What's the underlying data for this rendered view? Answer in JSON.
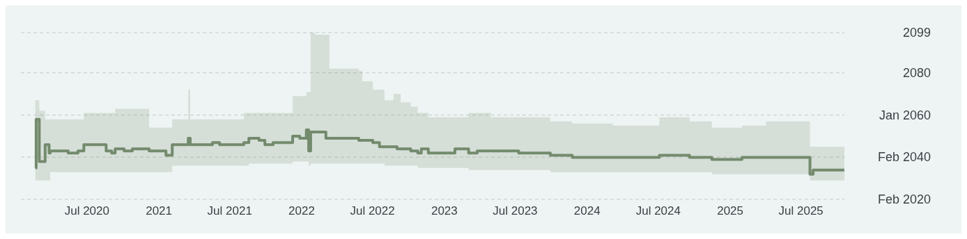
{
  "chart_data": {
    "type": "step",
    "x": [
      "2020-02-20",
      "2020-02-22",
      "2020-03-01",
      "2020-03-16",
      "2020-03-26",
      "2020-03-29",
      "2020-05-14",
      "2020-06-08",
      "2020-06-23",
      "2020-08-19",
      "2020-09-02",
      "2020-09-11",
      "2020-10-04",
      "2020-10-25",
      "2020-12-07",
      "2021-01-19",
      "2021-02-04",
      "2021-03-17",
      "2021-03-22",
      "2021-05-18",
      "2021-06-05",
      "2021-08-06",
      "2021-08-19",
      "2021-09-14",
      "2021-09-29",
      "2021-10-20",
      "2021-12-09",
      "2021-12-27",
      "2022-01-13",
      "2022-01-19",
      "2022-01-24",
      "2022-02-04",
      "2022-03-04",
      "2022-03-13",
      "2022-05-27",
      "2022-06-05",
      "2022-07-02",
      "2022-07-19",
      "2022-08-01",
      "2022-08-24",
      "2022-09-02",
      "2022-09-11",
      "2022-10-07",
      "2022-10-25",
      "2022-11-03",
      "2022-11-21",
      "2023-01-28",
      "2023-03-04",
      "2023-03-26",
      "2023-04-30",
      "2023-07-10",
      "2023-09-29",
      "2023-11-24",
      "2024-03-07",
      "2024-07-04",
      "2024-09-19",
      "2024-11-15",
      "2025-01-31",
      "2025-04-03",
      "2025-07-24",
      "2025-08-01",
      "2025-10-20"
    ],
    "series": [
      {
        "color": "#748a6d",
        "values": [
          2035,
          2058,
          2038,
          2046,
          2042,
          2043,
          2042,
          2043,
          2046,
          2043,
          2042,
          2044,
          2043,
          2044,
          2043,
          2041,
          2046,
          2049,
          2046,
          2047,
          2046,
          2047,
          2049,
          2048,
          2046,
          2047,
          2050,
          2049,
          2053,
          2043,
          2052,
          2052,
          2049,
          2049,
          2048,
          2048,
          2047,
          2045,
          2045,
          2045,
          2044,
          2044,
          2043,
          2042,
          2044,
          2042,
          2044,
          2042,
          2043,
          2043,
          2042,
          2041,
          2040,
          2040,
          2041,
          2040,
          2039,
          2040,
          2040,
          2032,
          2034,
          2034
        ],
        "lower": [
          2029,
          2029,
          2029,
          2029,
          2029,
          2033,
          2033,
          2033,
          2033,
          2033,
          2033,
          2033,
          2033,
          2033,
          2033,
          2033,
          2036,
          2036,
          2036,
          2036,
          2036,
          2036,
          2037,
          2037,
          2037,
          2037,
          2038,
          2038,
          2038,
          2036,
          2037,
          2037,
          2037,
          2037,
          2037,
          2037,
          2037,
          2037,
          2036,
          2036,
          2036,
          2036,
          2036,
          2035,
          2035,
          2035,
          2035,
          2034,
          2034,
          2034,
          2034,
          2033,
          2033,
          2033,
          2033,
          2033,
          2032,
          2032,
          2032,
          2029,
          2029,
          2029
        ],
        "upper": [
          2067,
          2067,
          2062,
          2058,
          2058,
          2058,
          2058,
          2058,
          2061,
          2061,
          2061,
          2063,
          2063,
          2063,
          2054,
          2054,
          2058,
          2072,
          2058,
          2058,
          2058,
          2061,
          2061,
          2061,
          2061,
          2061,
          2069,
          2069,
          2071,
          2071,
          2099,
          2098,
          2098,
          2082,
          2081,
          2076,
          2072,
          2072,
          2067,
          2070,
          2070,
          2066,
          2064,
          2061,
          2061,
          2059,
          2059,
          2061,
          2061,
          2059,
          2059,
          2057,
          2056,
          2055,
          2059,
          2057,
          2054,
          2055,
          2057,
          2045,
          2045,
          2045
        ]
      }
    ],
    "xlim": [
      "2020-01-14",
      "2025-10-20"
    ],
    "xticks": [
      {
        "value": "2020-07-01",
        "label": "Jul 2020"
      },
      {
        "value": "2021-01-01",
        "label": "2021"
      },
      {
        "value": "2021-07-01",
        "label": "Jul 2021"
      },
      {
        "value": "2022-01-01",
        "label": "2022"
      },
      {
        "value": "2022-07-01",
        "label": "Jul 2022"
      },
      {
        "value": "2023-01-01",
        "label": "2023"
      },
      {
        "value": "2023-07-01",
        "label": "Jul 2023"
      },
      {
        "value": "2024-01-01",
        "label": "2024"
      },
      {
        "value": "2024-07-01",
        "label": "Jul 2024"
      },
      {
        "value": "2025-01-01",
        "label": "2025"
      },
      {
        "value": "2025-07-01",
        "label": "Jul 2025"
      }
    ],
    "ylim": [
      2020.08,
      2099
    ],
    "yticks": [
      {
        "value": 2020.08,
        "label": "Feb 2020"
      },
      {
        "value": 2040.08,
        "label": "Feb 2040"
      },
      {
        "value": 2060,
        "label": "Jan 2060"
      },
      2080,
      2099
    ],
    "grid": "y"
  }
}
